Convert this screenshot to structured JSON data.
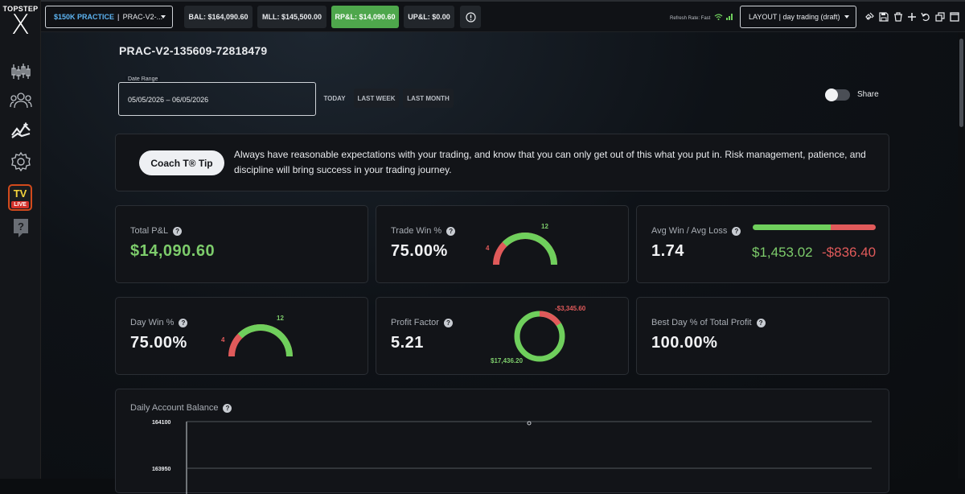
{
  "sidebar": {
    "logo_top": "TOPSTEP",
    "logo_x": "X",
    "items": [
      {
        "name": "trading-chart-icon"
      },
      {
        "name": "users-icon"
      },
      {
        "name": "performance-icon"
      },
      {
        "name": "settings-icon"
      },
      {
        "name": "tv-live-icon",
        "tv": "TV",
        "live": "LIVE"
      },
      {
        "name": "help-icon"
      }
    ]
  },
  "topbar": {
    "account_tag": "$150K PRACTICE",
    "account_sep": "|",
    "account_name": "PRAC-V2-...",
    "bal": "BAL: $164,090.60",
    "mll": "MLL: $145,500.00",
    "rpl": "RP&L: $14,090.60",
    "upl": "UP&L: $0.00",
    "refresh": "Refresh Rate: Fast",
    "layout": "LAYOUT | day trading (draft)"
  },
  "main": {
    "title": "PRAC-V2-135609-72818479",
    "date_range_label": "Date Range",
    "date_range_value": "05/05/2026 – 06/05/2026",
    "range_buttons": [
      "TODAY",
      "LAST WEEK",
      "LAST MONTH"
    ],
    "share_label": "Share",
    "coach_button": "Coach T® Tip",
    "tip_text": "Always have reasonable expectations with your trading, and know that you can only get out of this what you put in. Risk management, patience, and discipline will bring success in your trading journey."
  },
  "stats": {
    "total_pnl": {
      "label": "Total P&L",
      "value": "$14,090.60"
    },
    "trade_win": {
      "label": "Trade Win %",
      "value": "75.00%",
      "losses": "4",
      "wins": "12",
      "win_fraction": 0.75
    },
    "avg_win_loss": {
      "label": "Avg Win / Avg Loss",
      "value": "1.74",
      "avg_win": "$1,453.02",
      "avg_loss": "-$836.40",
      "win_fraction": 0.635
    },
    "day_win": {
      "label": "Day Win %",
      "value": "75.00%",
      "losses": "4",
      "wins": "12",
      "win_fraction": 0.75
    },
    "profit_factor": {
      "label": "Profit Factor",
      "value": "5.21",
      "gross_loss": "-$3,345.60",
      "gross_profit": "$17,436.20",
      "loss_fraction": 0.161
    },
    "best_day": {
      "label": "Best Day % of Total Profit",
      "value": "100.00%"
    }
  },
  "balance_chart": {
    "label": "Daily Account Balance",
    "yticks": [
      "164100",
      "163950"
    ]
  },
  "help_glyph": "?",
  "colors": {
    "green": "#7dcc6b",
    "red": "#e05a5a",
    "accent_blue": "#5db4f2"
  }
}
